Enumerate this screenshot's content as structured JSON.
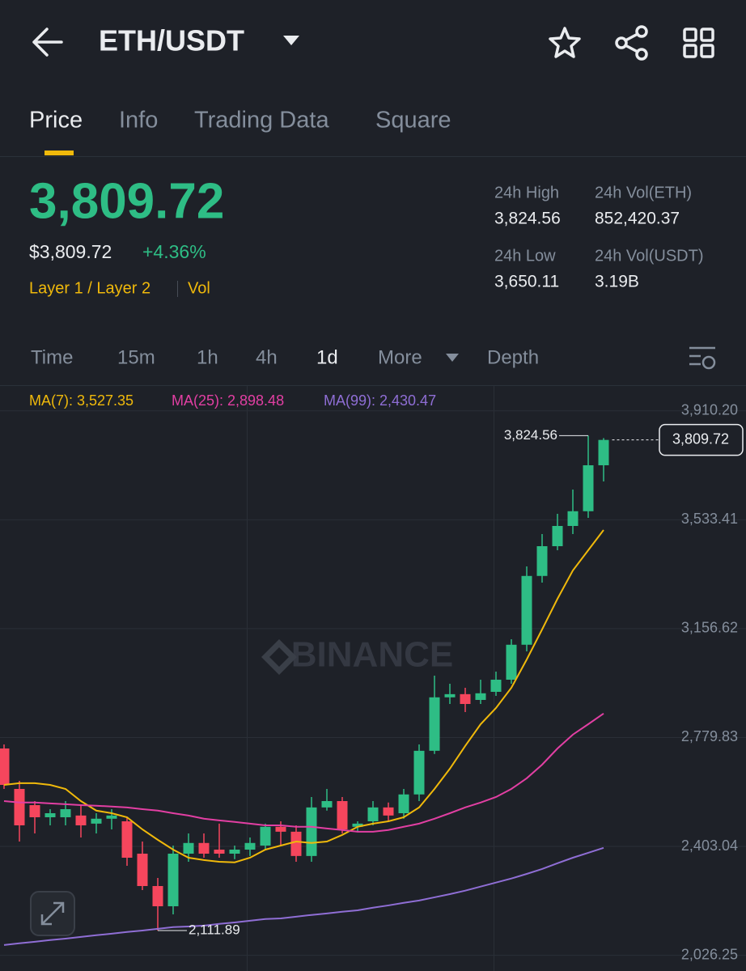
{
  "header": {
    "title": "ETH/USDT"
  },
  "tabs": [
    "Price",
    "Info",
    "Trading Data",
    "Square"
  ],
  "price": {
    "last": "3,809.72",
    "usd": "$3,809.72",
    "change": "+4.36%",
    "tags": [
      "Layer 1 / Layer 2",
      "Vol"
    ]
  },
  "stats": [
    {
      "label": "24h High",
      "value": "3,824.56"
    },
    {
      "label": "24h Vol(ETH)",
      "value": "852,420.37"
    },
    {
      "label": "24h Low",
      "value": "3,650.11"
    },
    {
      "label": "24h Vol(USDT)",
      "value": "3.19B"
    }
  ],
  "intervals": [
    "Time",
    "15m",
    "1h",
    "4h",
    "1d",
    "More",
    "Depth"
  ],
  "chart_data": {
    "type": "candlestick",
    "watermark": "BINANCE",
    "up_color": "#2ebd85",
    "down_color": "#f6465d",
    "ylim": [
      1986,
      3988
    ],
    "yticks": [
      {
        "value": 3910.2,
        "label": "3,910.20"
      },
      {
        "value": 3533.41,
        "label": "3,533.41"
      },
      {
        "value": 3156.62,
        "label": "3,156.62"
      },
      {
        "value": 2779.83,
        "label": "2,779.83"
      },
      {
        "value": 2403.04,
        "label": "2,403.04"
      },
      {
        "value": 2026.25,
        "label": "2,026.25"
      }
    ],
    "grid": true,
    "candles": [
      {
        "open": 2742,
        "high": 2756,
        "low": 2602,
        "close": 2616
      },
      {
        "open": 2602,
        "high": 2630,
        "low": 2420,
        "close": 2476
      },
      {
        "open": 2546,
        "high": 2560,
        "low": 2448,
        "close": 2504
      },
      {
        "open": 2504,
        "high": 2532,
        "low": 2476,
        "close": 2518
      },
      {
        "open": 2504,
        "high": 2560,
        "low": 2476,
        "close": 2532
      },
      {
        "open": 2510,
        "high": 2546,
        "low": 2434,
        "close": 2476
      },
      {
        "open": 2482,
        "high": 2518,
        "low": 2448,
        "close": 2499
      },
      {
        "open": 2499,
        "high": 2532,
        "low": 2462,
        "close": 2510
      },
      {
        "open": 2490,
        "high": 2504,
        "low": 2336,
        "close": 2364
      },
      {
        "open": 2378,
        "high": 2420,
        "low": 2252,
        "close": 2266
      },
      {
        "open": 2266,
        "high": 2294,
        "low": 2111.89,
        "close": 2196
      },
      {
        "open": 2196,
        "high": 2406,
        "low": 2168,
        "close": 2378
      },
      {
        "open": 2378,
        "high": 2448,
        "low": 2350,
        "close": 2415
      },
      {
        "open": 2415,
        "high": 2448,
        "low": 2364,
        "close": 2378
      },
      {
        "open": 2392,
        "high": 2482,
        "low": 2364,
        "close": 2378
      },
      {
        "open": 2378,
        "high": 2406,
        "low": 2359,
        "close": 2392
      },
      {
        "open": 2392,
        "high": 2434,
        "low": 2370,
        "close": 2415
      },
      {
        "open": 2406,
        "high": 2482,
        "low": 2392,
        "close": 2471
      },
      {
        "open": 2471,
        "high": 2490,
        "low": 2406,
        "close": 2454
      },
      {
        "open": 2454,
        "high": 2476,
        "low": 2350,
        "close": 2370
      },
      {
        "open": 2370,
        "high": 2574,
        "low": 2350,
        "close": 2538
      },
      {
        "open": 2538,
        "high": 2602,
        "low": 2527,
        "close": 2560
      },
      {
        "open": 2560,
        "high": 2574,
        "low": 2448,
        "close": 2462
      },
      {
        "open": 2471,
        "high": 2490,
        "low": 2454,
        "close": 2482
      },
      {
        "open": 2490,
        "high": 2560,
        "low": 2476,
        "close": 2538
      },
      {
        "open": 2538,
        "high": 2555,
        "low": 2490,
        "close": 2510
      },
      {
        "open": 2518,
        "high": 2602,
        "low": 2499,
        "close": 2583
      },
      {
        "open": 2583,
        "high": 2756,
        "low": 2560,
        "close": 2734
      },
      {
        "open": 2734,
        "high": 2994,
        "low": 2723,
        "close": 2919
      },
      {
        "open": 2919,
        "high": 2966,
        "low": 2896,
        "close": 2930
      },
      {
        "open": 2930,
        "high": 2952,
        "low": 2868,
        "close": 2896
      },
      {
        "open": 2910,
        "high": 2980,
        "low": 2896,
        "close": 2933
      },
      {
        "open": 2938,
        "high": 3008,
        "low": 2924,
        "close": 2980
      },
      {
        "open": 2980,
        "high": 3120,
        "low": 2966,
        "close": 3101
      },
      {
        "open": 3101,
        "high": 3372,
        "low": 3078,
        "close": 3339
      },
      {
        "open": 3339,
        "high": 3484,
        "low": 3316,
        "close": 3442
      },
      {
        "open": 3442,
        "high": 3554,
        "low": 3428,
        "close": 3512
      },
      {
        "open": 3512,
        "high": 3638,
        "low": 3484,
        "close": 3563
      },
      {
        "open": 3563,
        "high": 3824.56,
        "low": 3540,
        "close": 3722
      },
      {
        "open": 3722,
        "high": 3816,
        "low": 3666,
        "close": 3809.72
      }
    ],
    "series": [
      {
        "name": "MA(7): 3,527.35",
        "color": "#f0b90b",
        "values": [
          2616,
          2622,
          2622,
          2616,
          2602,
          2560,
          2527,
          2518,
          2504,
          2462,
          2426,
          2392,
          2364,
          2356,
          2350,
          2348,
          2364,
          2392,
          2406,
          2420,
          2415,
          2420,
          2443,
          2471,
          2482,
          2490,
          2504,
          2538,
          2602,
          2672,
          2751,
          2826,
          2882,
          2952,
          3050,
          3154,
          3260,
          3358,
          3428,
          3498
        ]
      },
      {
        "name": "MA(25): 2,898.48",
        "color": "#e23fa3",
        "values": [
          2560,
          2555,
          2555,
          2552,
          2549,
          2546,
          2544,
          2541,
          2538,
          2532,
          2527,
          2518,
          2510,
          2499,
          2493,
          2488,
          2482,
          2476,
          2476,
          2471,
          2471,
          2465,
          2460,
          2454,
          2454,
          2460,
          2471,
          2482,
          2499,
          2518,
          2538,
          2555,
          2574,
          2602,
          2639,
          2686,
          2742,
          2790,
          2826,
          2863
        ]
      },
      {
        "name": "MA(99): 2,430.47",
        "color": "#8f6ed5",
        "values": [
          2062,
          2068,
          2073,
          2079,
          2084,
          2090,
          2096,
          2101,
          2107,
          2112,
          2118,
          2124,
          2126,
          2129,
          2135,
          2140,
          2146,
          2152,
          2154,
          2160,
          2166,
          2171,
          2177,
          2182,
          2191,
          2199,
          2208,
          2216,
          2227,
          2238,
          2250,
          2264,
          2278,
          2292,
          2308,
          2325,
          2345,
          2364,
          2381,
          2398
        ]
      }
    ],
    "high_label": {
      "value": 3824.56,
      "label": "3,824.56"
    },
    "low_label": {
      "value": 2111.89,
      "label": "2,111.89"
    },
    "last_price": {
      "value": 3809.72,
      "label": "3,809.72"
    }
  }
}
